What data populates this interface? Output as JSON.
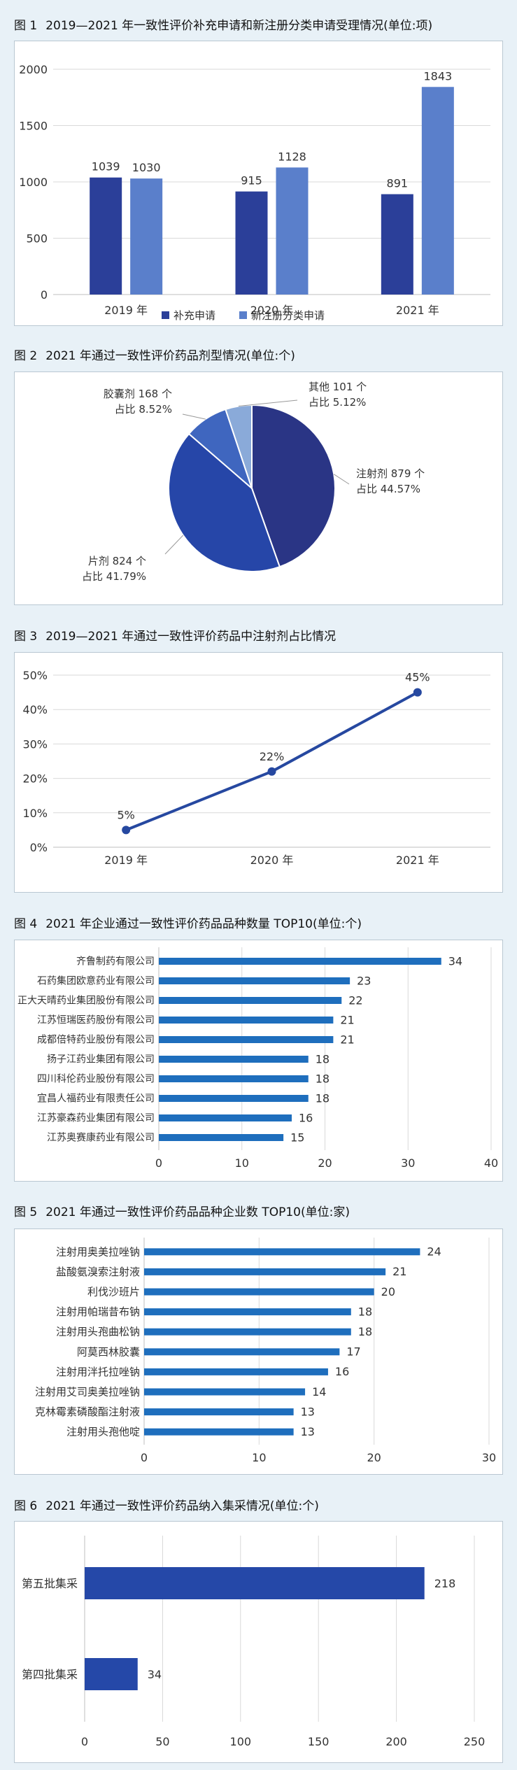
{
  "figures": [
    {
      "num": "图 1",
      "title": "2019—2021 年一致性评价补充申请和新注册分类申请受理情况(单位:项)"
    },
    {
      "num": "图 2",
      "title": "2021 年通过一致性评价药品剂型情况(单位:个)"
    },
    {
      "num": "图 3",
      "title": "2019—2021 年通过一致性评价药品中注射剂占比情况"
    },
    {
      "num": "图 4",
      "title": "2021 年企业通过一致性评价药品品种数量 TOP10(单位:个)"
    },
    {
      "num": "图 5",
      "title": "2021 年通过一致性评价药品品种企业数 TOP10(单位:家)"
    },
    {
      "num": "图 6",
      "title": "2021 年通过一致性评价药品纳入集采情况(单位:个)"
    }
  ],
  "chart_data": [
    {
      "type": "bar",
      "categories": [
        "2019 年",
        "2020 年",
        "2021 年"
      ],
      "series": [
        {
          "name": "补充申请",
          "values": [
            1039,
            915,
            891
          ],
          "color": "#2b3f99"
        },
        {
          "name": "新注册分类申请",
          "values": [
            1030,
            1128,
            1843
          ],
          "color": "#5a7fcb"
        }
      ],
      "yticks": [
        0,
        500,
        1000,
        1500,
        2000
      ],
      "ylim": [
        0,
        2000
      ],
      "grid": true,
      "legend": "bottom"
    },
    {
      "type": "pie",
      "slices": [
        {
          "label": "注射剂 879 个",
          "share": "占比 44.57%",
          "value": 879,
          "color": "#2a3585"
        },
        {
          "label": "片剂 824 个",
          "share": "占比 41.79%",
          "value": 824,
          "color": "#2646a8"
        },
        {
          "label": "胶囊剂 168 个",
          "share": "占比 8.52%",
          "value": 168,
          "color": "#3f66bf"
        },
        {
          "label": "其他 101 个",
          "share": "占比 5.12%",
          "value": 101,
          "color": "#8aaad9"
        }
      ]
    },
    {
      "type": "line",
      "x": [
        "2019 年",
        "2020 年",
        "2021 年"
      ],
      "values": [
        5,
        22,
        45
      ],
      "data_labels": [
        "5%",
        "22%",
        "45%"
      ],
      "yticks": [
        "0%",
        "10%",
        "20%",
        "30%",
        "40%",
        "50%"
      ],
      "ylim": [
        0,
        50
      ],
      "color": "#2648a0",
      "grid": true
    },
    {
      "type": "bar",
      "orientation": "horizontal",
      "categories": [
        "齐鲁制药有限公司",
        "石药集团欧意药业有限公司",
        "正大天晴药业集团股份有限公司",
        "江苏恒瑞医药股份有限公司",
        "成都倍特药业股份有限公司",
        "扬子江药业集团有限公司",
        "四川科伦药业股份有限公司",
        "宜昌人福药业有限责任公司",
        "江苏豪森药业集团有限公司",
        "江苏奥赛康药业有限公司"
      ],
      "values": [
        34,
        23,
        22,
        21,
        21,
        18,
        18,
        18,
        16,
        15
      ],
      "xticks": [
        0,
        10,
        20,
        30,
        40
      ],
      "xlim": [
        0,
        40
      ],
      "color": "#1e6ebd",
      "grid": true
    },
    {
      "type": "bar",
      "orientation": "horizontal",
      "categories": [
        "注射用奥美拉唑钠",
        "盐酸氨溴索注射液",
        "利伐沙班片",
        "注射用帕瑞昔布钠",
        "注射用头孢曲松钠",
        "阿莫西林胶囊",
        "注射用泮托拉唑钠",
        "注射用艾司奥美拉唑钠",
        "克林霉素磷酸酯注射液",
        "注射用头孢他啶"
      ],
      "values": [
        24,
        21,
        20,
        18,
        18,
        17,
        16,
        14,
        13,
        13
      ],
      "xticks": [
        0,
        10,
        20,
        30
      ],
      "xlim": [
        0,
        30
      ],
      "color": "#1e6ebd",
      "grid": true
    },
    {
      "type": "bar",
      "orientation": "horizontal",
      "categories": [
        "第五批集采",
        "第四批集采"
      ],
      "values": [
        218,
        34
      ],
      "xticks": [
        0,
        50,
        100,
        150,
        200,
        250
      ],
      "xlim": [
        0,
        250
      ],
      "color": "#2548a8",
      "grid": true
    }
  ]
}
